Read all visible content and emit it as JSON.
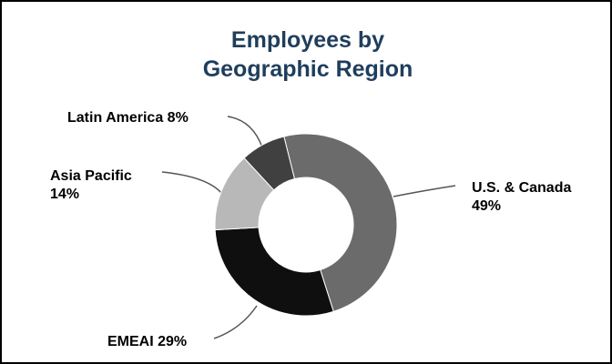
{
  "chart_data": {
    "type": "donut",
    "title": "Employees by Geographic Region",
    "categories": [
      "U.S. & Canada",
      "EMEAI",
      "Asia Pacific",
      "Latin America"
    ],
    "values": [
      49,
      29,
      14,
      8
    ],
    "value_labels": [
      "49%",
      "29%",
      "14%",
      "8%"
    ],
    "colors": [
      "#6b6b6b",
      "#0f0f0f",
      "#b8b8b8",
      "#404040"
    ]
  }
}
